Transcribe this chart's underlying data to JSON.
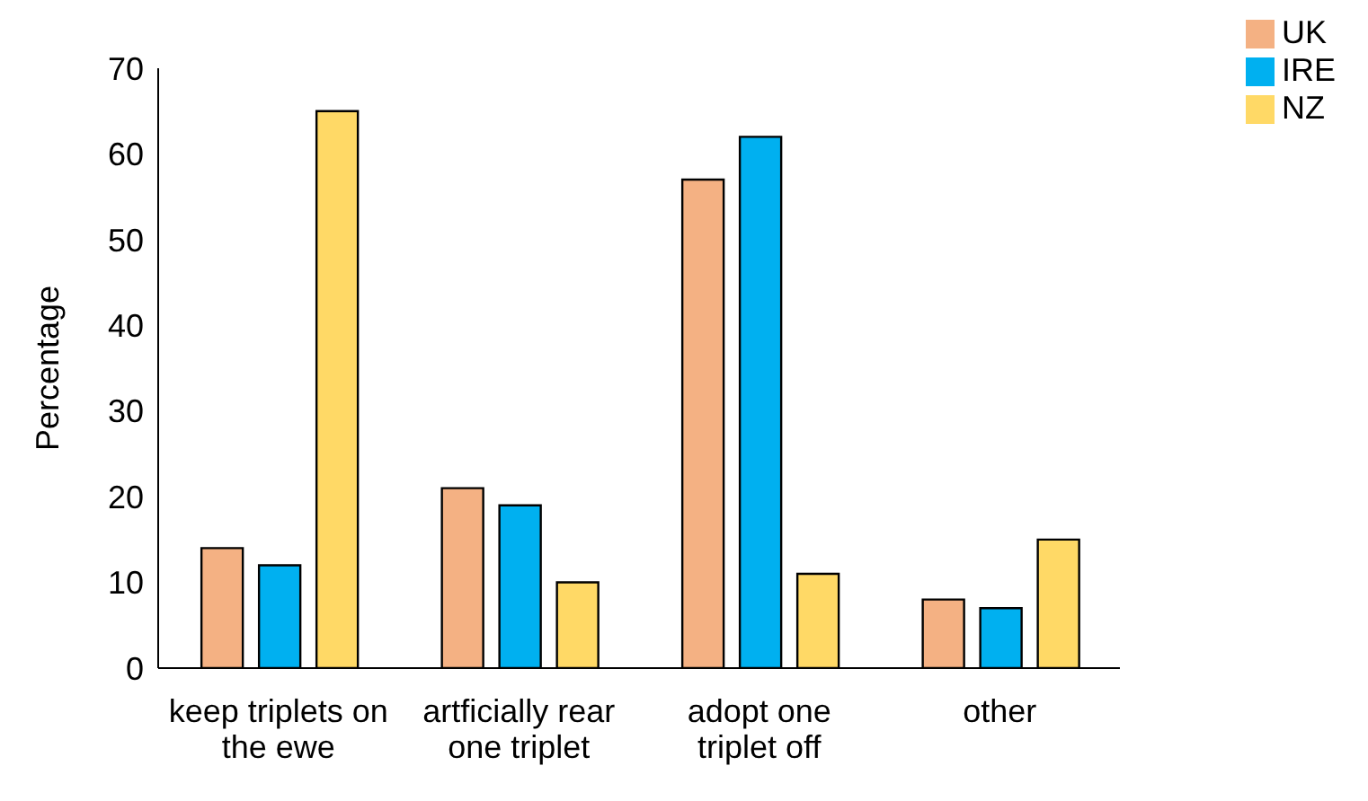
{
  "chart_data": {
    "type": "bar",
    "ylabel": "Percentage",
    "categories": [
      "keep triplets on the ewe",
      "artficially rear one triplet",
      "adopt one triplet off",
      "other"
    ],
    "series": [
      {
        "name": "UK",
        "color": "#f4b183",
        "values": [
          14,
          21,
          57,
          8
        ]
      },
      {
        "name": "IRE",
        "color": "#00b0f0",
        "values": [
          12,
          19,
          62,
          7
        ]
      },
      {
        "name": "NZ",
        "color": "#ffd966",
        "values": [
          65,
          10,
          11,
          15
        ]
      }
    ],
    "ylim": [
      0,
      70
    ],
    "yticks": [
      0,
      10,
      20,
      30,
      40,
      50,
      60,
      70
    ],
    "legend": "top right",
    "grid": false
  }
}
